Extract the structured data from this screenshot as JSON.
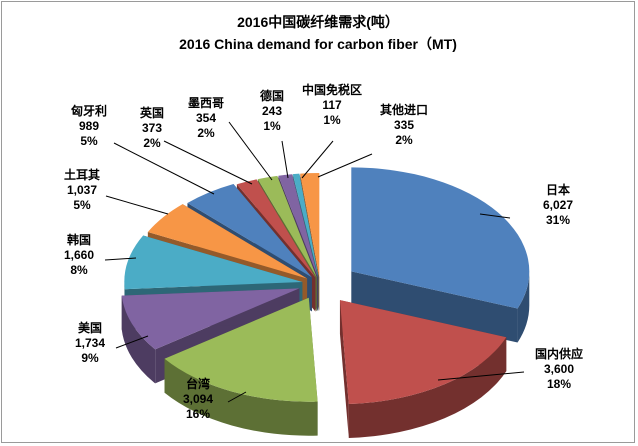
{
  "chart_data": {
    "type": "pie",
    "title": "2016中国碳纤维需求(吨）",
    "subtitle": "2016 China demand for carbon fiber（MT)",
    "slices": [
      {
        "name": "日本",
        "value_text": "6,027",
        "value": 6027,
        "percent": "31%",
        "color": "#4f81bd"
      },
      {
        "name": "国内供应",
        "value_text": "3,600",
        "value": 3600,
        "percent": "18%",
        "color": "#c0504d"
      },
      {
        "name": "台湾",
        "value_text": "3,094",
        "value": 3094,
        "percent": "16%",
        "color": "#9bbb59"
      },
      {
        "name": "美国",
        "value_text": "1,734",
        "value": 1734,
        "percent": "9%",
        "color": "#8064a2"
      },
      {
        "name": "韩国",
        "value_text": "1,660",
        "value": 1660,
        "percent": "8%",
        "color": "#4bacc6"
      },
      {
        "name": "土耳其",
        "value_text": "1,037",
        "value": 1037,
        "percent": "5%",
        "color": "#f79646"
      },
      {
        "name": "匈牙利",
        "value_text": "989",
        "value": 989,
        "percent": "5%",
        "color": "#4f81bd"
      },
      {
        "name": "英国",
        "value_text": "373",
        "value": 373,
        "percent": "2%",
        "color": "#c0504d"
      },
      {
        "name": "墨西哥",
        "value_text": "354",
        "value": 354,
        "percent": "2%",
        "color": "#9bbb59"
      },
      {
        "name": "德国",
        "value_text": "243",
        "value": 243,
        "percent": "1%",
        "color": "#8064a2"
      },
      {
        "name": "中国免税区",
        "value_text": "117",
        "value": 117,
        "percent": "1%",
        "color": "#4bacc6"
      },
      {
        "name": "其他进口",
        "value_text": "335",
        "value": 335,
        "percent": "2%",
        "color": "#f79646"
      }
    ]
  }
}
